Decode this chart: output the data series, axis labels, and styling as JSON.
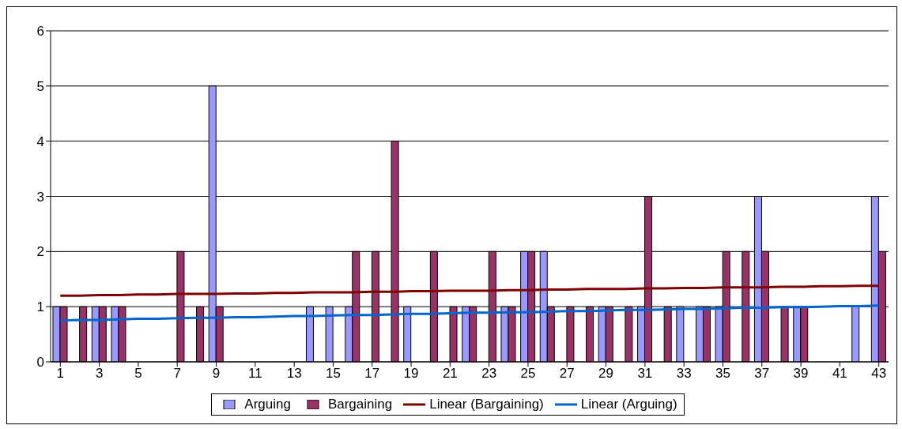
{
  "chart_data": {
    "type": "bar",
    "x": [
      1,
      2,
      3,
      4,
      5,
      6,
      7,
      8,
      9,
      10,
      11,
      12,
      13,
      14,
      15,
      16,
      17,
      18,
      19,
      20,
      21,
      22,
      23,
      24,
      25,
      26,
      27,
      28,
      29,
      30,
      31,
      32,
      33,
      34,
      35,
      36,
      37,
      38,
      39,
      40,
      41,
      42,
      43
    ],
    "xlim": [
      0.5,
      43.5
    ],
    "xticks": [
      1,
      3,
      5,
      7,
      9,
      11,
      13,
      15,
      17,
      19,
      21,
      23,
      25,
      27,
      29,
      31,
      33,
      35,
      37,
      39,
      41,
      43
    ],
    "ylim": [
      0,
      6
    ],
    "yticks": [
      0,
      1,
      2,
      3,
      4,
      5,
      6
    ],
    "grid": "y",
    "legend": "bottom",
    "series": [
      {
        "name": "Arguing",
        "color": "#9999ff",
        "values": [
          1,
          0,
          1,
          1,
          0,
          0,
          0,
          0,
          5,
          0,
          0,
          0,
          0,
          1,
          1,
          1,
          0,
          0,
          1,
          0,
          0,
          1,
          0,
          1,
          2,
          2,
          0,
          0,
          1,
          0,
          1,
          0,
          1,
          1,
          1,
          0,
          3,
          0,
          1,
          0,
          0,
          1,
          3
        ]
      },
      {
        "name": "Bargaining",
        "color": "#993366",
        "values": [
          1,
          1,
          1,
          1,
          0,
          0,
          2,
          1,
          1,
          0,
          0,
          0,
          0,
          0,
          0,
          2,
          2,
          4,
          0,
          2,
          1,
          1,
          2,
          1,
          2,
          1,
          1,
          1,
          1,
          1,
          3,
          1,
          0,
          1,
          2,
          2,
          2,
          1,
          1,
          0,
          0,
          0,
          2
        ]
      },
      {
        "name": "Linear (Bargaining)",
        "type": "line",
        "color": "#800000",
        "values": [
          1.2,
          1.2,
          1.21,
          1.21,
          1.22,
          1.22,
          1.23,
          1.23,
          1.23,
          1.24,
          1.24,
          1.25,
          1.25,
          1.26,
          1.26,
          1.26,
          1.27,
          1.27,
          1.28,
          1.28,
          1.29,
          1.29,
          1.29,
          1.3,
          1.3,
          1.31,
          1.31,
          1.32,
          1.32,
          1.32,
          1.33,
          1.33,
          1.34,
          1.34,
          1.35,
          1.35,
          1.35,
          1.36,
          1.36,
          1.37,
          1.37,
          1.38,
          1.38
        ]
      },
      {
        "name": "Linear (Arguing)",
        "type": "line",
        "color": "#0066cc",
        "values": [
          0.75,
          0.76,
          0.76,
          0.77,
          0.78,
          0.78,
          0.79,
          0.8,
          0.8,
          0.81,
          0.81,
          0.82,
          0.83,
          0.83,
          0.84,
          0.85,
          0.85,
          0.86,
          0.87,
          0.87,
          0.88,
          0.89,
          0.89,
          0.9,
          0.9,
          0.91,
          0.92,
          0.92,
          0.93,
          0.94,
          0.94,
          0.95,
          0.96,
          0.96,
          0.97,
          0.98,
          0.98,
          0.99,
          0.99,
          1.0,
          1.01,
          1.01,
          1.02
        ]
      }
    ]
  }
}
